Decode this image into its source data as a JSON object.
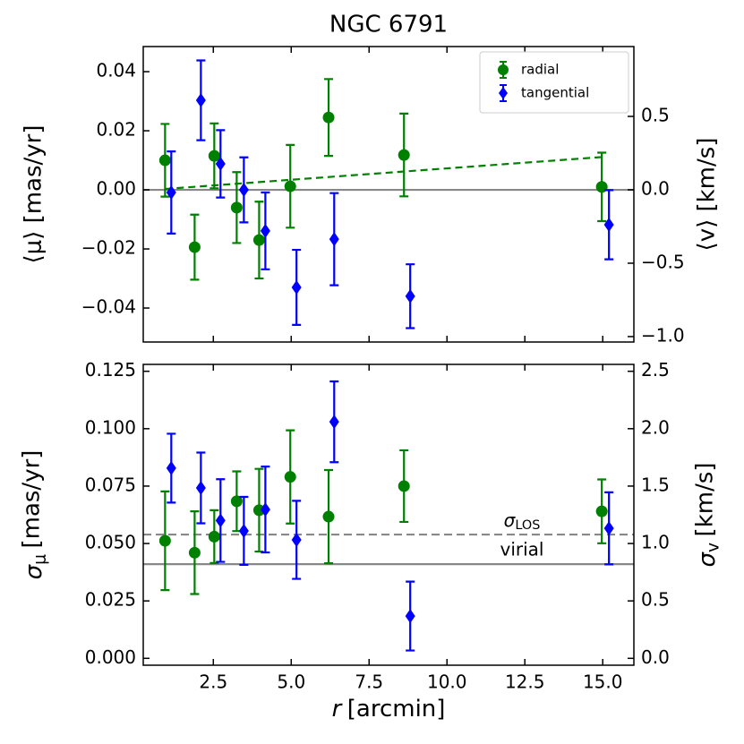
{
  "chart_data": [
    {
      "type": "errorbar",
      "title": "NGC 6791",
      "ylabel": "⟨μ⟩ [mas/yr]",
      "y2label": "⟨v⟩ [km/s]",
      "xlim": [
        0.25,
        16.0
      ],
      "xticks": [
        2.5,
        5,
        7.5,
        10,
        12.5,
        15
      ],
      "ylim": [
        -0.0515,
        0.0485
      ],
      "yticks": [
        {
          "value": -0.04,
          "label": "−0.04"
        },
        {
          "value": -0.02,
          "label": "−0.02"
        },
        {
          "value": 0,
          "label": "0.00"
        },
        0.02,
        0.04
      ],
      "y2lim": [
        -1.037,
        0.976
      ],
      "y2ticks": [
        {
          "value": -1,
          "label": "−1.0"
        },
        {
          "value": -0.5,
          "label": "−0.5"
        },
        {
          "value": 0,
          "label": "0.0"
        },
        0.5
      ],
      "legend": "upper right",
      "series": [
        {
          "name": "radial",
          "color": "#008000",
          "marker": "circle",
          "x": [
            0.95,
            1.9,
            2.53,
            3.25,
            3.97,
            4.97,
            6.2,
            8.62,
            14.97
          ],
          "values": [
            0.01,
            -0.0194,
            0.0115,
            -0.006,
            -0.017,
            0.0012,
            0.0245,
            0.0118,
            0.001
          ],
          "errors": [
            0.0123,
            0.011,
            0.011,
            0.012,
            0.013,
            0.014,
            0.013,
            0.014,
            0.0116
          ]
        },
        {
          "name": "tangential",
          "color": "#0000ff",
          "marker": "diamond",
          "x": [
            1.15,
            2.1,
            2.73,
            3.48,
            4.17,
            5.17,
            6.38,
            8.82,
            15.2
          ],
          "values": [
            -0.0009,
            0.0303,
            0.0088,
            0.0,
            -0.0139,
            -0.033,
            -0.0167,
            -0.036,
            -0.0118
          ],
          "errors": [
            0.0139,
            0.0135,
            0.0114,
            0.011,
            0.013,
            0.0127,
            0.0156,
            0.0108,
            0.0117
          ]
        }
      ],
      "fit": {
        "color": "#008000",
        "style": "dashed",
        "x": [
          0.95,
          15.1
        ],
        "values": [
          0.0003,
          0.0112
        ]
      },
      "hlines": [
        {
          "value": 0,
          "color": "#888888",
          "style": "solid"
        }
      ]
    },
    {
      "type": "errorbar",
      "xlabel": {
        "symbol": "r",
        "unit": "[arcmin]"
      },
      "ylabel": {
        "symbol": "σ",
        "sub": "μ",
        "unit": "[mas/yr]"
      },
      "y2label": {
        "symbol": "σ",
        "sub": "v",
        "unit": "[km/s]"
      },
      "xlim": [
        0.25,
        16.0
      ],
      "xticks": [
        2.5,
        {
          "value": 5,
          "label": "5.0"
        },
        7.5,
        {
          "value": 10,
          "label": "10.0"
        },
        12.5,
        {
          "value": 15,
          "label": "15.0"
        }
      ],
      "ylim": [
        -0.003,
        0.128
      ],
      "yticks": [
        {
          "value": 0,
          "label": "0.000"
        },
        0.025,
        {
          "value": 0.05,
          "label": "0.050"
        },
        0.075,
        {
          "value": 0.1,
          "label": "0.100"
        },
        0.125
      ],
      "y2lim": [
        -0.06,
        2.56
      ],
      "y2ticks": [
        {
          "value": 0,
          "label": "0.0"
        },
        0.5,
        {
          "value": 1,
          "label": "1.0"
        },
        1.5,
        {
          "value": 2,
          "label": "2.0"
        },
        2.5
      ],
      "series": [
        {
          "color": "#008000",
          "marker": "circle",
          "x": [
            0.95,
            1.9,
            2.53,
            3.25,
            3.97,
            4.97,
            6.2,
            8.62,
            14.97
          ],
          "values": [
            0.0512,
            0.046,
            0.053,
            0.0684,
            0.0645,
            0.079,
            0.0617,
            0.075,
            0.064
          ],
          "errors": [
            0.0215,
            0.018,
            0.0115,
            0.013,
            0.018,
            0.0203,
            0.0203,
            0.0156,
            0.0139
          ]
        },
        {
          "color": "#0000ff",
          "marker": "diamond",
          "x": [
            1.15,
            2.1,
            2.73,
            3.48,
            4.17,
            5.17,
            6.38,
            8.82,
            15.2
          ],
          "values": [
            0.0828,
            0.0742,
            0.06,
            0.0555,
            0.0648,
            0.0516,
            0.103,
            0.0184,
            0.0566
          ],
          "errors": [
            0.015,
            0.0154,
            0.018,
            0.0148,
            0.0187,
            0.017,
            0.0176,
            0.015,
            0.0157
          ]
        }
      ],
      "hlines": [
        {
          "value": 0.0539,
          "color": "#888888",
          "style": "dashed",
          "label": {
            "symbol": "σ",
            "sub": "LOS"
          }
        },
        {
          "value": 0.041,
          "color": "#888888",
          "style": "solid",
          "label": "virial"
        }
      ]
    }
  ]
}
